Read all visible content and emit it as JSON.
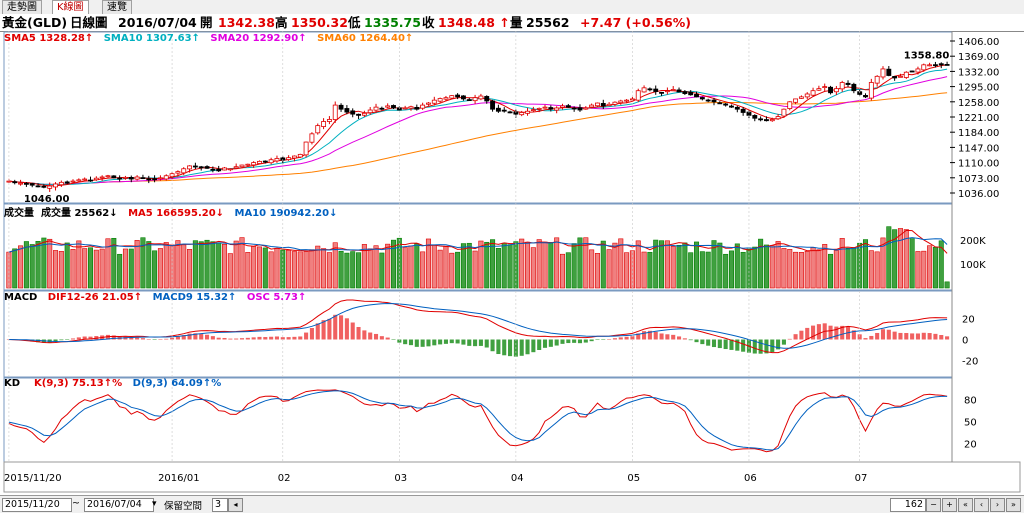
{
  "tabs": [
    "走勢圖",
    "K線圖",
    "速覽"
  ],
  "header": {
    "symbol": "黃金(GLD)",
    "period": "日線圖",
    "date": "2016/07/04",
    "open_label": "開",
    "open": "1342.38",
    "high_label": "高",
    "high": "1350.32",
    "low_label": "低",
    "low": "1335.75",
    "close_label": "收",
    "close": "1348.48 ↑",
    "volume_label": "量",
    "volume": "25562",
    "change": "+7.47 (+0.56%)"
  },
  "price_panel": {
    "legend": [
      {
        "text": "SMA5 1328.28↑",
        "color": "#e00000"
      },
      {
        "text": "SMA10 1307.63↑",
        "color": "#00b0c0"
      },
      {
        "text": "SMA20 1292.90↑",
        "color": "#e000e0"
      },
      {
        "text": "SMA60 1264.40↑",
        "color": "#ff8000"
      }
    ],
    "axis_ticks": [
      "1406.00",
      "1369.00",
      "1332.00",
      "1295.00",
      "1258.00",
      "1221.00",
      "1184.00",
      "1147.00",
      "1110.00",
      "1073.00",
      "1036.00"
    ],
    "high_annotation": "1358.80",
    "low_annotation": "1046.00"
  },
  "volume_panel": {
    "legend": [
      {
        "text": "成交量",
        "color": "#000000"
      },
      {
        "text": "成交量 25562↓",
        "color": "#000000"
      },
      {
        "text": "MA5 166595.20↓",
        "color": "#e00000"
      },
      {
        "text": "MA10 190942.20↓",
        "color": "#0060c0"
      }
    ],
    "axis_ticks": [
      "200K",
      "100K"
    ]
  },
  "macd_panel": {
    "legend": [
      {
        "text": "MACD",
        "color": "#000000"
      },
      {
        "text": "DIF12-26 21.05↑",
        "color": "#e00000"
      },
      {
        "text": "MACD9 15.32↑",
        "color": "#0060c0"
      },
      {
        "text": "OSC 5.73↑",
        "color": "#e000e0"
      }
    ],
    "axis_ticks": [
      "20",
      "0",
      "-20"
    ]
  },
  "kd_panel": {
    "legend": [
      {
        "text": "KD",
        "color": "#000000"
      },
      {
        "text": "K(9,3) 75.13↑%",
        "color": "#e00000"
      },
      {
        "text": "D(9,3) 64.09↑%",
        "color": "#0060c0"
      }
    ],
    "axis_ticks": [
      "80",
      "50",
      "20"
    ]
  },
  "time_axis": [
    "2015/11/20",
    "2016/01",
    "02",
    "03",
    "04",
    "05",
    "06",
    "07"
  ],
  "bottom_bar": {
    "start_date": "2015/11/20",
    "separator": "~",
    "end_date": "2016/07/04",
    "keep_space_label": "保留空間",
    "keep_space_value": "3",
    "bar_count": "162"
  },
  "colors": {
    "up": "#e00000",
    "down": "#008000",
    "sma5": "#e00000",
    "sma10": "#00b0c0",
    "sma20": "#e000e0",
    "sma60": "#ff8000"
  },
  "chart_data": {
    "type": "candlestick",
    "bars": 162,
    "x_range": [
      "2015/11/20",
      "2016/07/04"
    ],
    "price_ylim": [
      1036,
      1406
    ],
    "close_approx": [
      1065,
      1062,
      1060,
      1058,
      1055,
      1052,
      1050,
      1053,
      1058,
      1062,
      1060,
      1065,
      1068,
      1070,
      1066,
      1072,
      1075,
      1078,
      1073,
      1070,
      1074,
      1070,
      1075,
      1072,
      1068,
      1070,
      1073,
      1078,
      1083,
      1088,
      1095,
      1102,
      1100,
      1098,
      1096,
      1093,
      1090,
      1097,
      1095,
      1100,
      1104,
      1106,
      1110,
      1113,
      1112,
      1117,
      1120,
      1116,
      1122,
      1126,
      1130,
      1160,
      1180,
      1200,
      1210,
      1215,
      1250,
      1240,
      1233,
      1228,
      1225,
      1230,
      1238,
      1245,
      1242,
      1248,
      1243,
      1238,
      1243,
      1246,
      1240,
      1250,
      1255,
      1262,
      1266,
      1268,
      1273,
      1270,
      1265,
      1263,
      1268,
      1272,
      1260,
      1240,
      1235,
      1236,
      1232,
      1228,
      1232,
      1235,
      1239,
      1242,
      1245,
      1240,
      1243,
      1248,
      1245,
      1242,
      1238,
      1243,
      1250,
      1255,
      1248,
      1252,
      1257,
      1260,
      1262,
      1265,
      1285,
      1292,
      1288,
      1283,
      1280,
      1285,
      1288,
      1282,
      1278,
      1275,
      1270,
      1265,
      1262,
      1258,
      1255,
      1250,
      1245,
      1240,
      1232,
      1225,
      1218,
      1215,
      1212,
      1215,
      1222,
      1240,
      1258,
      1265,
      1270,
      1277,
      1285,
      1290,
      1295,
      1280,
      1290,
      1305,
      1300,
      1285,
      1276,
      1270,
      1305,
      1320,
      1338,
      1322,
      1316,
      1320,
      1330,
      1332,
      1338,
      1348
    ],
    "volume_ylim": [
      0,
      270000
    ],
    "macd_ylim": [
      -30,
      30
    ],
    "kd_ylim": [
      0,
      100
    ]
  }
}
